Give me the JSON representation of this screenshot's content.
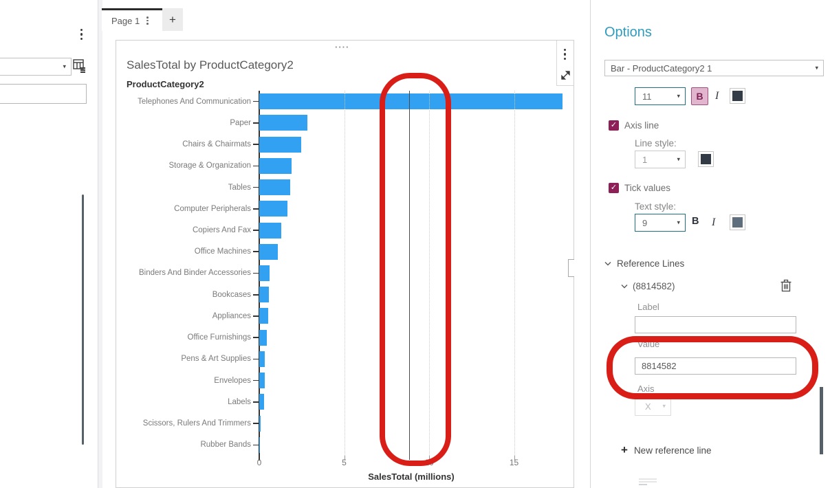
{
  "icons": {
    "caret": "▾",
    "check": "✓",
    "plus": "+",
    "drag_dots": "····"
  },
  "left_panel": {
    "dropdown_value": "",
    "input_value": ""
  },
  "tab_bar": {
    "active_tab": "Page 1",
    "add_tab_label": "+"
  },
  "chart_card": {
    "title": "SalesTotal by ProductCategory2",
    "category_axis_title": "ProductCategory2",
    "value_axis_title": "SalesTotal (millions)"
  },
  "chart_data": {
    "type": "bar",
    "orientation": "horizontal",
    "title": "SalesTotal by ProductCategory2",
    "xlabel": "SalesTotal (millions)",
    "ylabel": "ProductCategory2",
    "categories": [
      "Telephones And Communication",
      "Paper",
      "Chairs & Chairmats",
      "Storage & Organization",
      "Tables",
      "Computer Peripherals",
      "Copiers And Fax",
      "Office Machines",
      "Binders And Binder Accessories",
      "Bookcases",
      "Appliances",
      "Office Furnishings",
      "Pens & Art Supplies",
      "Envelopes",
      "Labels",
      "Scissors, Rulers And Trimmers",
      "Rubber Bands"
    ],
    "values_millions": [
      17.85,
      2.85,
      2.48,
      1.9,
      1.84,
      1.66,
      1.3,
      1.1,
      0.6,
      0.57,
      0.53,
      0.44,
      0.34,
      0.31,
      0.28,
      0.08,
      0.04
    ],
    "x_ticks": [
      0,
      5,
      10,
      15
    ],
    "xlim": [
      0,
      18.6
    ],
    "grid": "dotted-vertical",
    "bar_color": "#33a1f2",
    "reference_line": {
      "value": 8814582,
      "value_millions": 8.814582
    }
  },
  "options_panel": {
    "title": "Options",
    "object_selector_value": "Bar - ProductCategory2 1",
    "title_style": {
      "font_size": "11",
      "bold_label": "B",
      "italic_label": "I",
      "color": "#333b46",
      "bold_active": true
    },
    "axis_line": {
      "label": "Axis line",
      "checked": true,
      "line_style_label": "Line style:",
      "line_width": "1",
      "color": "#333b46"
    },
    "tick_values": {
      "label": "Tick values",
      "checked": true,
      "text_style_label": "Text style:",
      "font_size": "9",
      "bold_label": "B",
      "italic_label": "I",
      "color": "#5f6e7d"
    },
    "reference_lines": {
      "section_label": "Reference Lines",
      "item_label": "(8814582)",
      "label_field": {
        "label": "Label",
        "value": ""
      },
      "value_field": {
        "label": "Value",
        "value": "8814582"
      },
      "axis_field": {
        "label": "Axis",
        "value": "X"
      },
      "new_link_label": "New reference line"
    }
  },
  "colors": {
    "accent_teal": "#2f9cbe",
    "accent_maroon": "#8d2057",
    "bar_blue": "#33a1f2",
    "annotation_red": "#d81e16"
  }
}
